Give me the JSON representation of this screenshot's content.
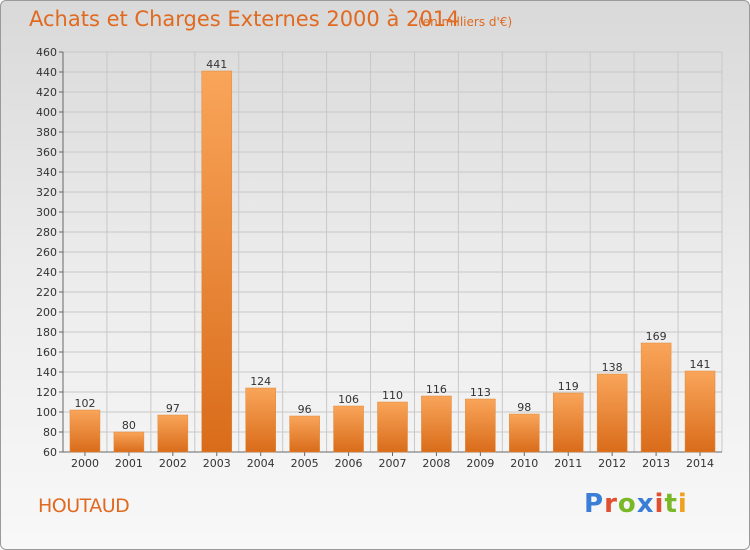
{
  "header": {
    "title": "Achats et Charges Externes 2000 à 2014",
    "unit": "(en milliers d'€)"
  },
  "footer": {
    "town": "HOUTAUD",
    "brand": "Proxiti"
  },
  "colors": {
    "accent": "#e06a20",
    "bar_light": "#f9a55a",
    "bar_dark": "#d96c1a",
    "logo_letters": [
      "#3a7fd5",
      "#e05030",
      "#7ab828",
      "#3a7fd5",
      "#e05030",
      "#7ab828",
      "#f0a020"
    ]
  },
  "chart_data": {
    "type": "bar",
    "title": "Achats et Charges Externes 2000 à 2014",
    "subtitle": "(en milliers d'€)",
    "categories": [
      "2000",
      "2001",
      "2002",
      "2003",
      "2004",
      "2005",
      "2006",
      "2007",
      "2008",
      "2009",
      "2010",
      "2011",
      "2012",
      "2013",
      "2014"
    ],
    "values": [
      102,
      80,
      97,
      441,
      124,
      96,
      106,
      110,
      116,
      113,
      98,
      119,
      138,
      169,
      141
    ],
    "ylim": [
      60,
      460
    ],
    "yticks": [
      60,
      80,
      100,
      120,
      140,
      160,
      180,
      200,
      220,
      240,
      260,
      280,
      300,
      320,
      340,
      360,
      380,
      400,
      420,
      440,
      460
    ],
    "grid": true,
    "data_labels": true
  }
}
